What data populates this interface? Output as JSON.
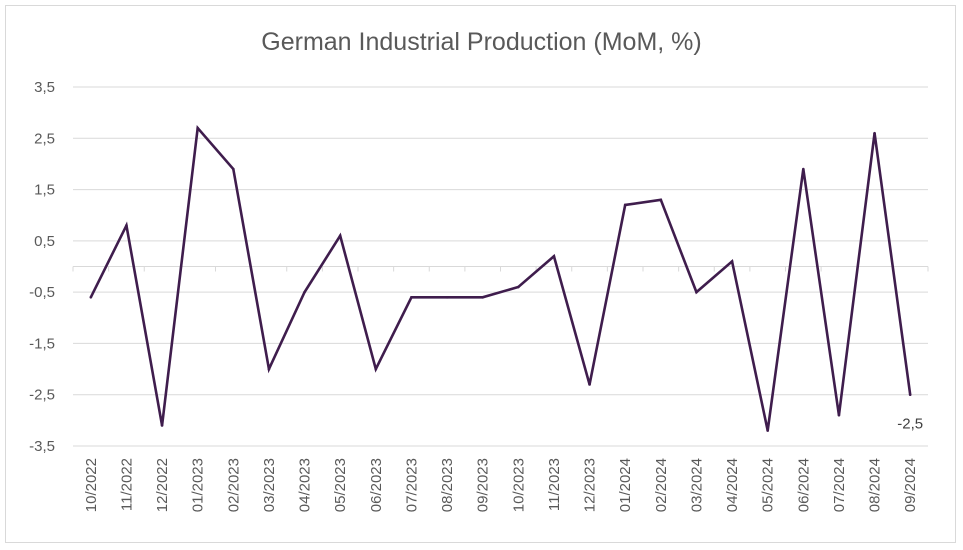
{
  "chart_data": {
    "type": "line",
    "title": "German Industrial Production (MoM, %)",
    "xlabel": "",
    "ylabel": "",
    "ylim": [
      -3.5,
      3.5
    ],
    "yticks": [
      3.5,
      2.5,
      1.5,
      0.5,
      -0.5,
      -1.5,
      -2.5,
      -3.5
    ],
    "ytick_labels": [
      "3,5",
      "2,5",
      "1,5",
      "0,5",
      "-0,5",
      "-1,5",
      "-2,5",
      "-3,5"
    ],
    "grid": "horizontal",
    "legend": "none",
    "categories": [
      "10/2022",
      "11/2022",
      "12/2022",
      "01/2023",
      "02/2023",
      "03/2023",
      "04/2023",
      "05/2023",
      "06/2023",
      "07/2023",
      "08/2023",
      "09/2023",
      "10/2023",
      "11/2023",
      "12/2023",
      "01/2024",
      "02/2024",
      "03/2024",
      "04/2024",
      "05/2024",
      "06/2024",
      "07/2024",
      "08/2024",
      "09/2024"
    ],
    "series": [
      {
        "values": [
          -0.6,
          0.8,
          -3.1,
          2.7,
          1.9,
          -2.0,
          -0.5,
          0.6,
          -2.0,
          -0.6,
          -0.6,
          -0.6,
          -0.4,
          0.2,
          -2.3,
          1.2,
          1.3,
          -0.5,
          0.1,
          -3.2,
          1.9,
          -2.9,
          2.6,
          -2.5
        ],
        "color": "#3f1d4d"
      }
    ],
    "data_labels": [
      {
        "index": 23,
        "text": "-2,5"
      }
    ]
  }
}
